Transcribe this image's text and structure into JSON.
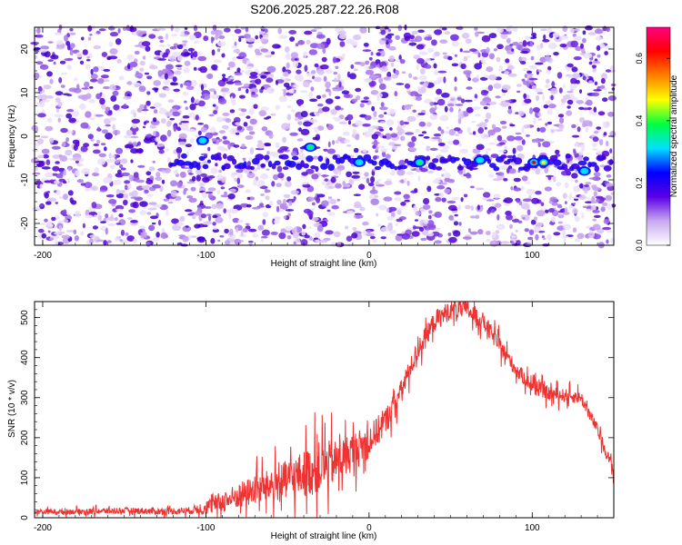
{
  "title": "S206.2025.287.22.26.R08",
  "chart_data": [
    {
      "type": "heatmap",
      "xlabel": "Height of straight line (km)",
      "ylabel": "Frequency (Hz)",
      "xlim": [
        -205,
        150
      ],
      "ylim": [
        -25,
        25
      ],
      "xticks": [
        -200,
        -100,
        0,
        100
      ],
      "yticks": [
        -20,
        -10,
        0,
        10,
        20
      ],
      "grid": false,
      "description_of_values": "Background speckle of normalized amplitude 0.0–0.2 across the whole plane; a persistent line near -6 Hz from about -120 km to 150 km with peaks reaching ~0.6",
      "line_feature": {
        "frequency_hz": -6,
        "x_start_km": -120,
        "x_end_km": 150
      },
      "peaks": [
        {
          "x_km": -102,
          "f_hz": -1,
          "amp": 0.3
        },
        {
          "x_km": -36,
          "f_hz": -2.5,
          "amp": 0.42
        },
        {
          "x_km": -6,
          "f_hz": -6,
          "amp": 0.28
        },
        {
          "x_km": 31,
          "f_hz": -6,
          "amp": 0.38
        },
        {
          "x_km": 68,
          "f_hz": -5.5,
          "amp": 0.33
        },
        {
          "x_km": 101,
          "f_hz": -6,
          "amp": 0.62
        },
        {
          "x_km": 107,
          "f_hz": -6,
          "amp": 0.45
        },
        {
          "x_km": 132,
          "f_hz": -8,
          "amp": 0.3
        }
      ],
      "colorbar": {
        "label": "Normalized spectral amplitude",
        "range": [
          0.0,
          0.7
        ],
        "ticks": [
          0.0,
          0.2,
          0.4,
          0.6
        ],
        "tick_labels": [
          "0.0",
          "0.2",
          "0.4",
          "0.6"
        ],
        "colors": [
          "#ffffff",
          "#c8a8f0",
          "#5a00e6",
          "#0000ff",
          "#00e0ff",
          "#00ff40",
          "#ffff00",
          "#ff8000",
          "#ff0000",
          "#ff0080"
        ]
      }
    },
    {
      "type": "line",
      "xlabel": "Height of straight line (km)",
      "ylabel": "SNR (10 * v/v)",
      "xlim": [
        -205,
        150
      ],
      "ylim": [
        0,
        540
      ],
      "xticks": [
        -200,
        -100,
        0,
        100
      ],
      "yticks": [
        0,
        100,
        200,
        300,
        400,
        500
      ],
      "grid": false,
      "series": [
        {
          "name": "SNR",
          "color": "#ee3333",
          "x": [
            -205,
            -190,
            -170,
            -150,
            -130,
            -110,
            -100,
            -90,
            -80,
            -70,
            -60,
            -50,
            -40,
            -30,
            -20,
            -10,
            0,
            10,
            20,
            30,
            40,
            50,
            60,
            70,
            80,
            90,
            100,
            110,
            120,
            130,
            140,
            150
          ],
          "y": [
            15,
            15,
            16,
            18,
            16,
            18,
            25,
            40,
            55,
            70,
            80,
            95,
            110,
            125,
            140,
            165,
            190,
            240,
            320,
            420,
            490,
            520,
            520,
            490,
            430,
            370,
            330,
            310,
            305,
            300,
            220,
            115
          ],
          "noise_envelope": [
            {
              "x": -205,
              "amp": 10
            },
            {
              "x": -110,
              "amp": 15
            },
            {
              "x": -90,
              "amp": 45
            },
            {
              "x": -60,
              "amp": 70
            },
            {
              "x": -30,
              "amp": 110
            },
            {
              "x": -20,
              "amp": 90
            },
            {
              "x": 0,
              "amp": 70
            },
            {
              "x": 20,
              "amp": 45
            },
            {
              "x": 60,
              "amp": 40
            },
            {
              "x": 100,
              "amp": 30
            },
            {
              "x": 150,
              "amp": 25
            }
          ]
        }
      ]
    }
  ]
}
